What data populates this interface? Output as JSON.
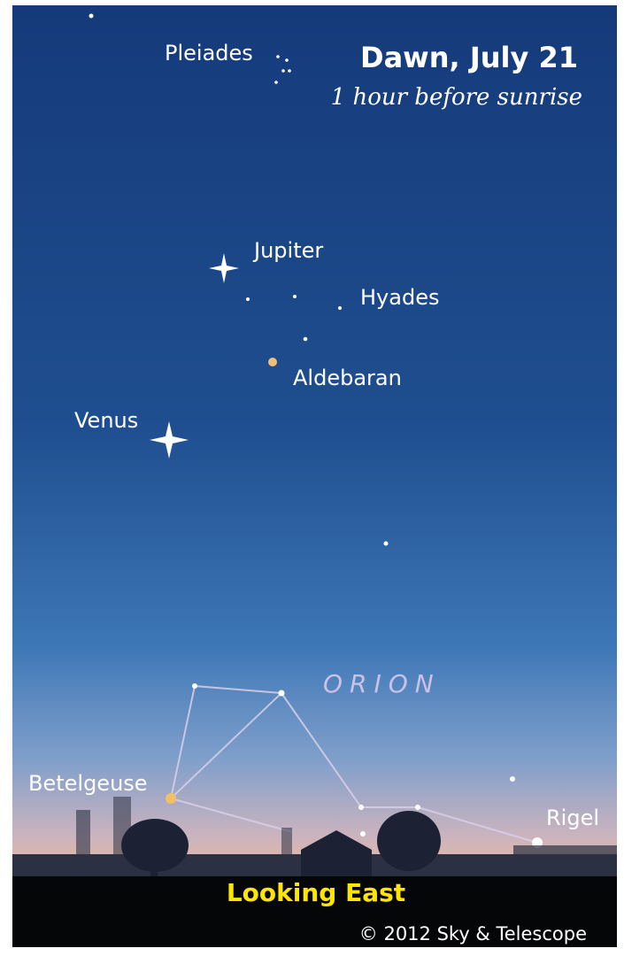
{
  "header": {
    "title": "Dawn, July 21",
    "subtitle": "1 hour before sunrise"
  },
  "objects": [
    {
      "label": "Pleiades"
    },
    {
      "label": "Jupiter"
    },
    {
      "label": "Hyades"
    },
    {
      "label": "Aldebaran"
    },
    {
      "label": "Venus"
    },
    {
      "label": "Betelgeuse"
    },
    {
      "label": "Rigel"
    }
  ],
  "constellation": {
    "label": "ORION"
  },
  "footer": {
    "direction": "Looking East",
    "credit": "© 2012 Sky & Telescope"
  }
}
